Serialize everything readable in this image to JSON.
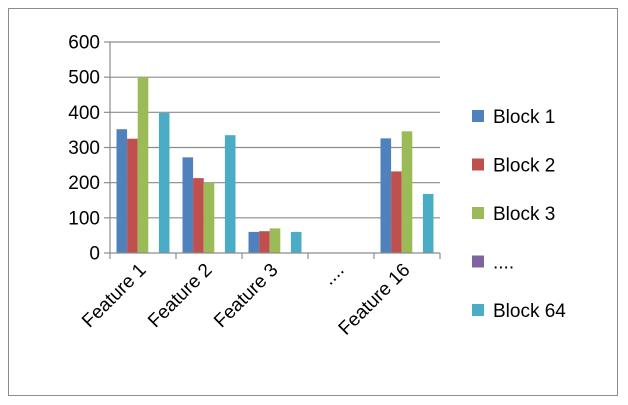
{
  "chart_data": {
    "type": "bar",
    "categories": [
      "Feature 1",
      "Feature 2",
      "Feature 3",
      "....",
      "Feature 16"
    ],
    "ylim": [
      0,
      600
    ],
    "yticks": [
      0,
      100,
      200,
      300,
      400,
      500,
      600
    ],
    "grid": true,
    "legend": "right",
    "series": [
      {
        "name": "Block 1",
        "color": "#4f81bd",
        "values": [
          352,
          272,
          60,
          null,
          326
        ]
      },
      {
        "name": "Block 2",
        "color": "#c0504d",
        "values": [
          325,
          213,
          62,
          null,
          232
        ]
      },
      {
        "name": "Block 3",
        "color": "#9bbb59",
        "values": [
          500,
          200,
          70,
          null,
          346
        ]
      },
      {
        "name": "....",
        "color": "#8064a2",
        "values": [
          null,
          null,
          null,
          null,
          null
        ]
      },
      {
        "name": "Block 64",
        "color": "#4bacc6",
        "values": [
          398,
          335,
          60,
          null,
          168
        ]
      }
    ]
  }
}
